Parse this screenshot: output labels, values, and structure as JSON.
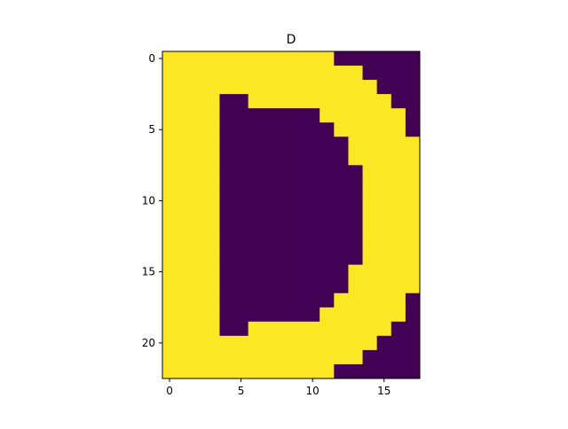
{
  "chart_data": {
    "type": "heatmap",
    "title": "D",
    "xlabel": "",
    "ylabel": "",
    "x_ticks": [
      0,
      5,
      10,
      15
    ],
    "y_ticks": [
      0,
      5,
      10,
      15,
      20
    ],
    "xlim": [
      -0.5,
      17.5
    ],
    "ylim": [
      22.5,
      -0.5
    ],
    "grid": false,
    "colormap": "viridis",
    "colors": {
      "0": "#440154",
      "1": "#fde725"
    },
    "matrix": [
      "111111111111000000",
      "111111111111110000",
      "111111111111111000",
      "111100111111111100",
      "111100000001111110",
      "111100000000111110",
      "111100000000011111",
      "111100000000011111",
      "111100000000001111",
      "111100000000001111",
      "111100000000001111",
      "111100000000001111",
      "111100000000001111",
      "111100000000001111",
      "111100000000001111",
      "111100000000011111",
      "111100000000011111",
      "111100000000111110",
      "111100000001111110",
      "111100111111111100",
      "111111111111111000",
      "111111111111110000",
      "111111111111000000"
    ]
  }
}
